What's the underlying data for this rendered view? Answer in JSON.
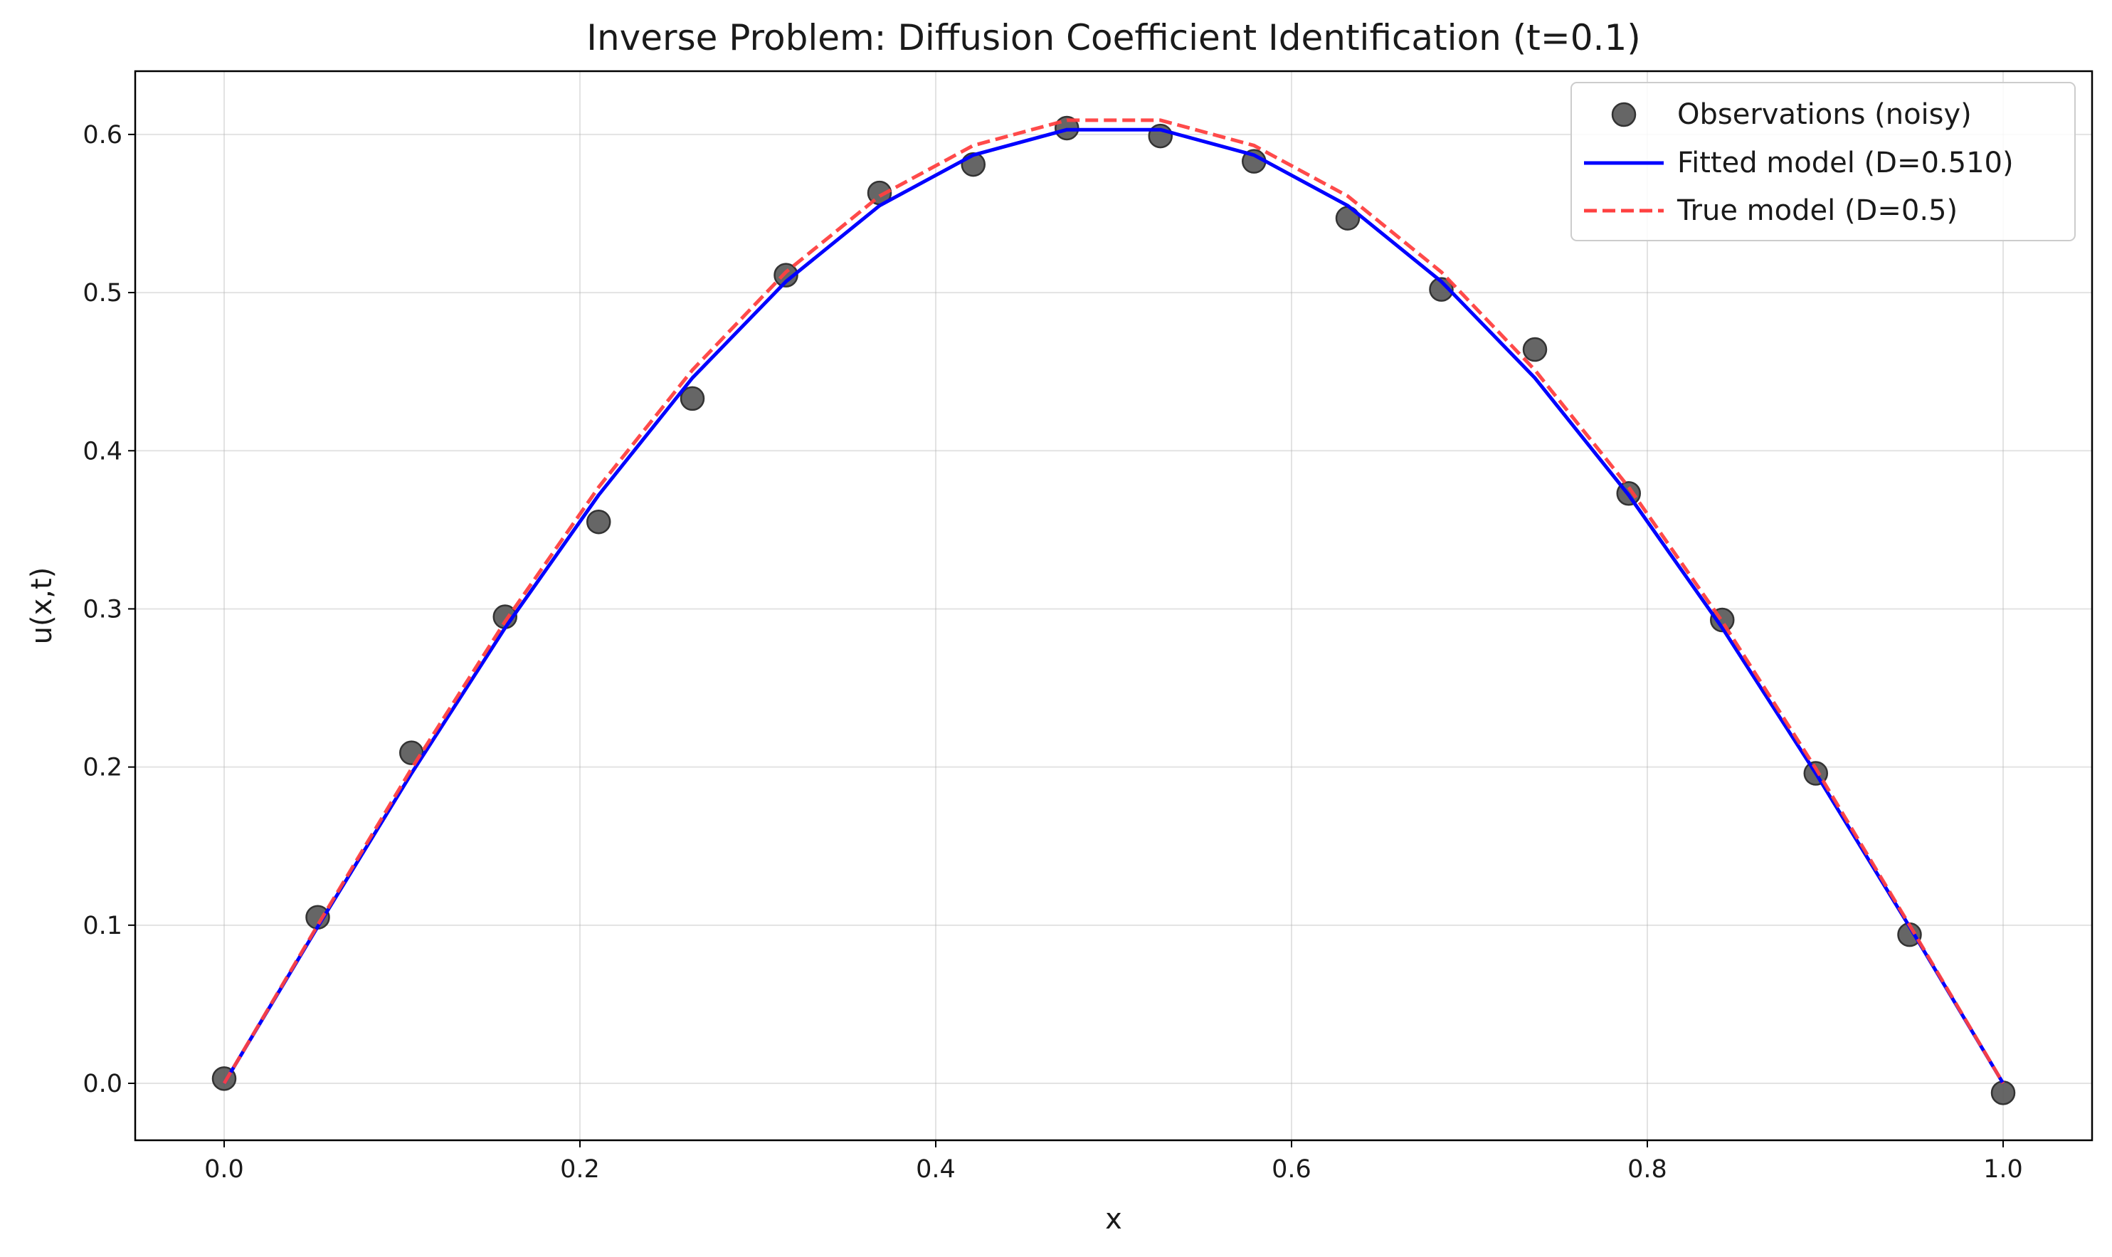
{
  "chart_data": {
    "type": "line",
    "title": "Inverse Problem: Diffusion Coefficient Identification (t=0.1)",
    "xlabel": "x",
    "ylabel": "u(x,t)",
    "xlim": [
      -0.05,
      1.05
    ],
    "ylim": [
      -0.036,
      0.64
    ],
    "xticks": [
      0.0,
      0.2,
      0.4,
      0.6,
      0.8,
      1.0
    ],
    "xtick_labels": [
      "0.0",
      "0.2",
      "0.4",
      "0.6",
      "0.8",
      "1.0"
    ],
    "yticks": [
      0.0,
      0.1,
      0.2,
      0.3,
      0.4,
      0.5,
      0.6
    ],
    "ytick_labels": [
      "0.0",
      "0.1",
      "0.2",
      "0.3",
      "0.4",
      "0.5",
      "0.6"
    ],
    "grid": true,
    "legend_position": "top-right",
    "x": [
      0.0,
      0.0526,
      0.1053,
      0.1579,
      0.2105,
      0.2632,
      0.3158,
      0.3684,
      0.4211,
      0.4737,
      0.5263,
      0.5789,
      0.6316,
      0.6842,
      0.7368,
      0.7895,
      0.8421,
      0.8947,
      0.9474,
      1.0
    ],
    "series": [
      {
        "name": "Observations (noisy)",
        "style": "scatter",
        "color": "#555555",
        "values": [
          0.003,
          0.105,
          0.209,
          0.295,
          0.355,
          0.433,
          0.511,
          0.563,
          0.581,
          0.604,
          0.599,
          0.583,
          0.547,
          0.502,
          0.464,
          0.373,
          0.293,
          0.196,
          0.094,
          -0.006
        ]
      },
      {
        "name": "Fitted model (D=0.510)",
        "style": "solid",
        "color": "#0000ff",
        "values": [
          0.0,
          0.099,
          0.196,
          0.288,
          0.372,
          0.446,
          0.507,
          0.555,
          0.587,
          0.603,
          0.603,
          0.587,
          0.555,
          0.507,
          0.446,
          0.372,
          0.288,
          0.196,
          0.099,
          0.0
        ]
      },
      {
        "name": "True model (D=0.5)",
        "style": "dashed",
        "color": "#ff4040",
        "values": [
          0.0,
          0.1,
          0.199,
          0.292,
          0.377,
          0.451,
          0.513,
          0.561,
          0.593,
          0.609,
          0.609,
          0.593,
          0.561,
          0.513,
          0.451,
          0.377,
          0.292,
          0.199,
          0.1,
          0.0
        ]
      }
    ]
  }
}
